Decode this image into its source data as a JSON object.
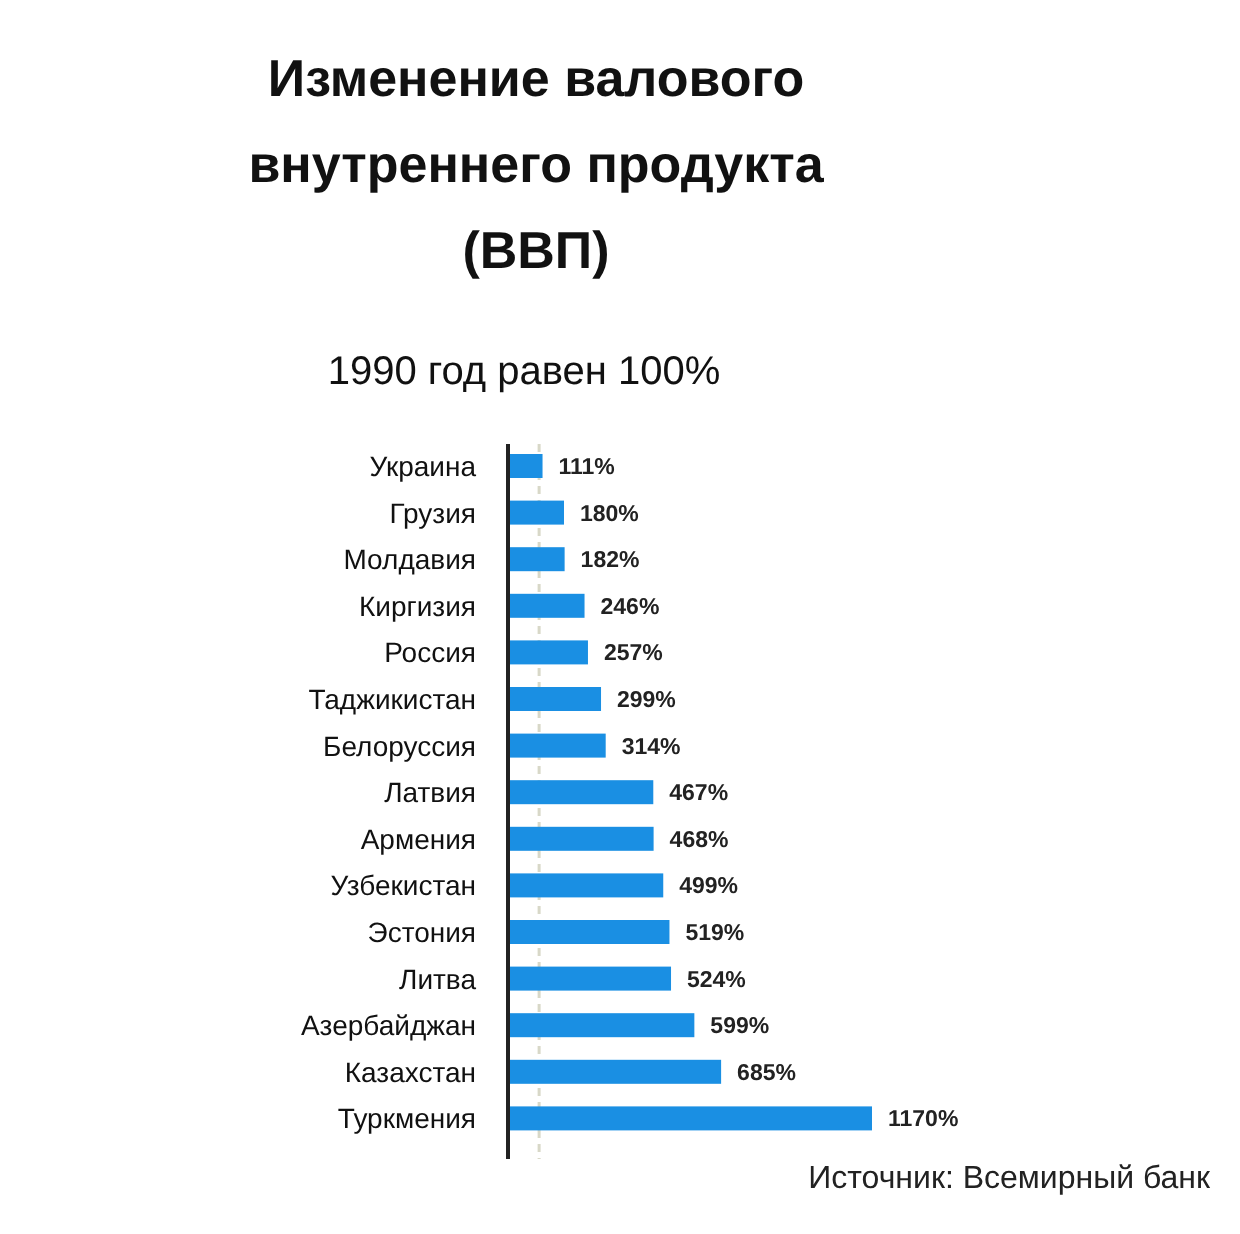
{
  "chart_data": {
    "type": "bar",
    "orientation": "horizontal",
    "title": "Изменение валового\nвнутреннего продукта\n(ВВП)",
    "subtitle": "1990 год равен 100%",
    "categories": [
      "Украина",
      "Грузия",
      "Молдавия",
      "Киргизия",
      "Россия",
      "Таджикистан",
      "Белоруссия",
      "Латвия",
      "Армения",
      "Узбекистан",
      "Эстония",
      "Литва",
      "Азербайджан",
      "Казахстан",
      "Туркмения"
    ],
    "values": [
      111,
      180,
      182,
      246,
      257,
      299,
      314,
      467,
      468,
      499,
      519,
      524,
      599,
      685,
      1170
    ],
    "value_labels": [
      "111%",
      "180%",
      "182%",
      "246%",
      "257%",
      "299%",
      "314%",
      "467%",
      "468%",
      "499%",
      "519%",
      "524%",
      "599%",
      "685%",
      "1170%"
    ],
    "color": "#1a8fe3",
    "ref_lines": [
      {
        "axis": "x",
        "value": 100,
        "line_style": "dashed",
        "color": "#d8d8c8"
      }
    ],
    "annotations": [
      "Источник: Всемирный банк"
    ]
  }
}
